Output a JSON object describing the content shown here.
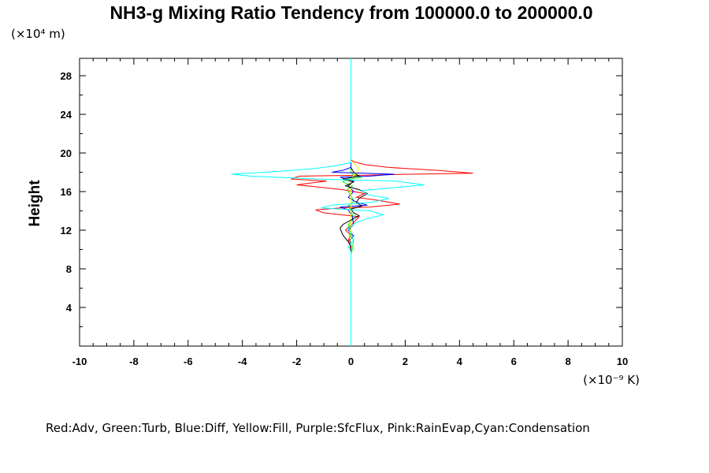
{
  "chart_data": {
    "type": "line",
    "title": "NH3-g Mixing Ratio Tendency from 100000.0 to 200000.0",
    "ylabel": "Height",
    "y_unit_label": "(×10⁴ m)",
    "x_unit_label": "(×10⁻⁹ K)",
    "legend_text": "Red:Adv, Green:Turb, Blue:Diff, Yellow:Fill, Purple:SfcFlux, Pink:RainEvap,Cyan:Condensation",
    "xlim": [
      -10,
      10
    ],
    "ylim": [
      0,
      29.8
    ],
    "xticks": [
      -10,
      -8,
      -6,
      -4,
      -2,
      0,
      2,
      4,
      6,
      8,
      10
    ],
    "yticks": [
      4,
      8,
      12,
      16,
      20,
      24,
      28
    ],
    "grid": false,
    "series": [
      {
        "color": "#ff0000",
        "points": [
          [
            0,
            0
          ],
          [
            0,
            10
          ],
          [
            -0.05,
            10.4
          ],
          [
            -0.1,
            11
          ],
          [
            0,
            11.5
          ],
          [
            -0.2,
            12
          ],
          [
            0.1,
            12.8
          ],
          [
            0.3,
            13.4
          ],
          [
            -1,
            13.8
          ],
          [
            -1.3,
            14.1
          ],
          [
            -0.4,
            14.3
          ],
          [
            0.7,
            14.4
          ],
          [
            1.8,
            14.7
          ],
          [
            1.0,
            15.1
          ],
          [
            0.2,
            15.4
          ],
          [
            0.5,
            15.8
          ],
          [
            -0.3,
            16.2
          ],
          [
            -1.3,
            16.5
          ],
          [
            -2.0,
            16.7
          ],
          [
            -0.9,
            17.1
          ],
          [
            -2.2,
            17.3
          ],
          [
            -1.9,
            17.6
          ],
          [
            0.5,
            17.7
          ],
          [
            2.2,
            17.8
          ],
          [
            4.5,
            17.9
          ],
          [
            3.2,
            18.2
          ],
          [
            1.4,
            18.5
          ],
          [
            0.5,
            18.8
          ],
          [
            0.1,
            19.1
          ],
          [
            0,
            19.3
          ],
          [
            0,
            29.8
          ]
        ]
      },
      {
        "color": "#00ff00",
        "points": [
          [
            0,
            0
          ],
          [
            0,
            9.5
          ],
          [
            0.05,
            10
          ],
          [
            0.1,
            11
          ],
          [
            -0.05,
            11.5
          ],
          [
            0,
            12
          ],
          [
            -0.1,
            12.6
          ],
          [
            0.1,
            13.2
          ],
          [
            0,
            14
          ],
          [
            -0.1,
            14.5
          ],
          [
            0.1,
            15
          ],
          [
            0,
            15.6
          ],
          [
            -0.15,
            16.2
          ],
          [
            0.05,
            16.6
          ],
          [
            -0.3,
            17.0
          ],
          [
            -0.2,
            17.2
          ],
          [
            -0.05,
            17.3
          ],
          [
            0.4,
            17.5
          ],
          [
            0.1,
            17.7
          ],
          [
            0,
            18
          ],
          [
            0,
            29.8
          ]
        ]
      },
      {
        "color": "#0000ff",
        "points": [
          [
            0,
            0
          ],
          [
            0,
            10.5
          ],
          [
            -0.05,
            11
          ],
          [
            0.1,
            11.4
          ],
          [
            -0.1,
            12
          ],
          [
            0.1,
            12.6
          ],
          [
            0.05,
            13.4
          ],
          [
            -0.1,
            14.1
          ],
          [
            -0.4,
            14.4
          ],
          [
            0.6,
            14.6
          ],
          [
            0.2,
            14.9
          ],
          [
            -0.1,
            15.4
          ],
          [
            0.1,
            16
          ],
          [
            -0.1,
            16.6
          ],
          [
            0.1,
            17.1
          ],
          [
            -0.2,
            17.3
          ],
          [
            -0.4,
            17.5
          ],
          [
            0.7,
            17.6
          ],
          [
            1.6,
            17.8
          ],
          [
            0.5,
            17.9
          ],
          [
            -0.7,
            18.0
          ],
          [
            -0.3,
            18.2
          ],
          [
            0,
            18.5
          ],
          [
            0,
            29.8
          ]
        ]
      },
      {
        "color": "#ffff00",
        "points": [
          [
            0,
            0
          ],
          [
            0,
            17
          ],
          [
            0.05,
            17.5
          ],
          [
            0.2,
            18
          ],
          [
            0.3,
            18.4
          ],
          [
            0.15,
            18.8
          ],
          [
            0,
            19.2
          ],
          [
            0,
            29.8
          ]
        ]
      },
      {
        "color": "#000000",
        "points": [
          [
            0,
            8.5
          ],
          [
            0,
            10.4
          ],
          [
            -0.1,
            10.8
          ],
          [
            -0.3,
            11.5
          ],
          [
            -0.4,
            12.2
          ],
          [
            -0.3,
            12.6
          ],
          [
            0.1,
            13.2
          ],
          [
            0.3,
            13.5
          ],
          [
            0.1,
            13.8
          ],
          [
            0,
            14.2
          ],
          [
            0.4,
            14.5
          ],
          [
            0.2,
            14.9
          ],
          [
            0.3,
            15.3
          ],
          [
            0.6,
            15.8
          ],
          [
            0.3,
            16.2
          ],
          [
            -0.2,
            16.6
          ],
          [
            0.1,
            17.0
          ],
          [
            -0.3,
            17.3
          ],
          [
            0.3,
            17.6
          ],
          [
            0.1,
            18.0
          ],
          [
            0,
            18.5
          ]
        ]
      },
      {
        "color": "#00ffff",
        "points": [
          [
            0,
            0
          ],
          [
            0,
            9.8
          ],
          [
            -0.1,
            10.2
          ],
          [
            0.1,
            11
          ],
          [
            0,
            11.6
          ],
          [
            -0.1,
            12.2
          ],
          [
            0.2,
            12.8
          ],
          [
            0.6,
            13.2
          ],
          [
            1.2,
            13.6
          ],
          [
            0.7,
            14.0
          ],
          [
            -1.1,
            14.3
          ],
          [
            -0.7,
            14.6
          ],
          [
            0.8,
            14.9
          ],
          [
            1.4,
            15.3
          ],
          [
            0.6,
            15.7
          ],
          [
            0.4,
            16.1
          ],
          [
            2.7,
            16.7
          ],
          [
            1.6,
            17.1
          ],
          [
            -1.2,
            17.3
          ],
          [
            -3.7,
            17.6
          ],
          [
            -4.4,
            17.8
          ],
          [
            -2.6,
            18.1
          ],
          [
            -1.3,
            18.4
          ],
          [
            -0.5,
            18.7
          ],
          [
            0,
            19
          ],
          [
            0,
            29.8
          ]
        ]
      }
    ]
  }
}
